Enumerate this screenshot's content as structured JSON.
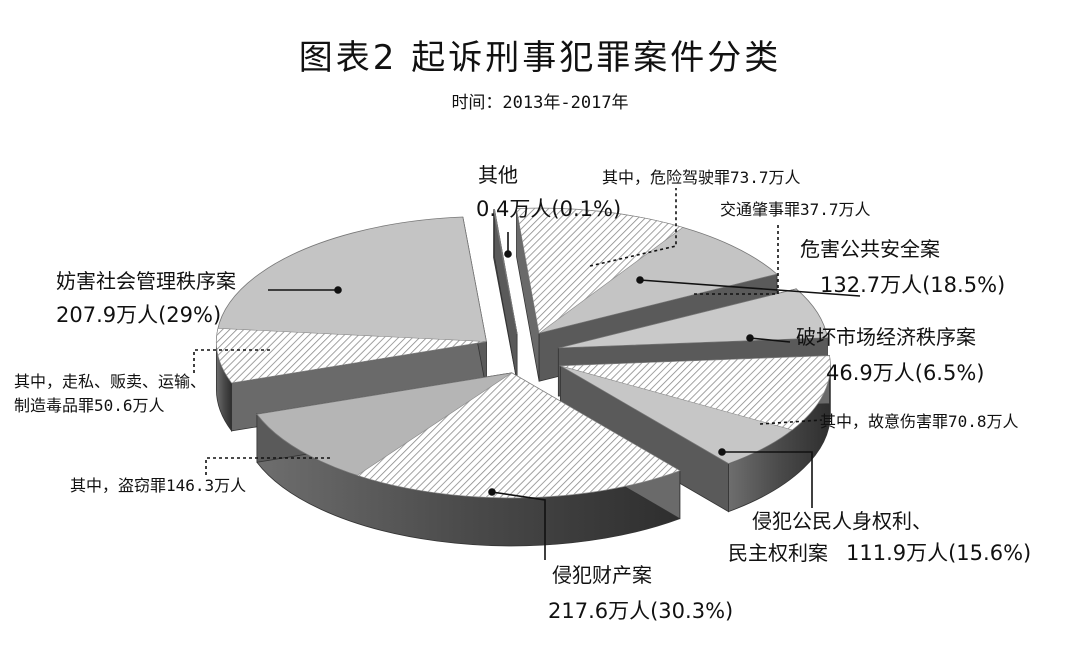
{
  "title": "图表2  起诉刑事犯罪案件分类",
  "subtitle": "时间：2013年-2017年",
  "chart_data": {
    "type": "pie",
    "unit": "万人",
    "slices": [
      {
        "label": "其他",
        "value": 0.4,
        "value_text": "0.4万人(0.1%)",
        "percent": 0.1,
        "color": "#c9c9c9"
      },
      {
        "label": "危害公共安全案",
        "value": 132.7,
        "value_text": "132.7万人(18.5%)",
        "percent": 18.5,
        "color": "#c4c4c4",
        "subitems": [
          {
            "text": "其中，危险驾驶罪73.7万人",
            "value": 73.7
          },
          {
            "text": "交通肇事罪37.7万人",
            "value": 37.7
          }
        ]
      },
      {
        "label": "破坏市场经济秩序案",
        "value": 46.9,
        "value_text": "46.9万人(6.5%)",
        "percent": 6.5,
        "color": "#c9c9c9"
      },
      {
        "label": "侵犯公民人身权利、",
        "label2": "民主权利案",
        "value": 111.9,
        "value_text": "111.9万人(15.6%)",
        "percent": 15.6,
        "color": "#c6c6c6",
        "subitems": [
          {
            "text": "其中，故意伤害罪70.8万人",
            "value": 70.8
          }
        ]
      },
      {
        "label": "侵犯财产案",
        "value": 217.6,
        "value_text": "217.6万人(30.3%)",
        "percent": 30.3,
        "color": "#b5b5b5",
        "subitems": [
          {
            "text": "其中，盗窃罪146.3万人",
            "value": 146.3
          }
        ]
      },
      {
        "label": "妨害社会管理秩序案",
        "value": 207.9,
        "value_text": "207.9万人(29%)",
        "percent": 29,
        "color": "#c4c4c4",
        "subitems": [
          {
            "text": "其中，走私、贩卖、运输、",
            "text2": "制造毒品罪50.6万人",
            "value": 50.6
          }
        ]
      }
    ]
  }
}
